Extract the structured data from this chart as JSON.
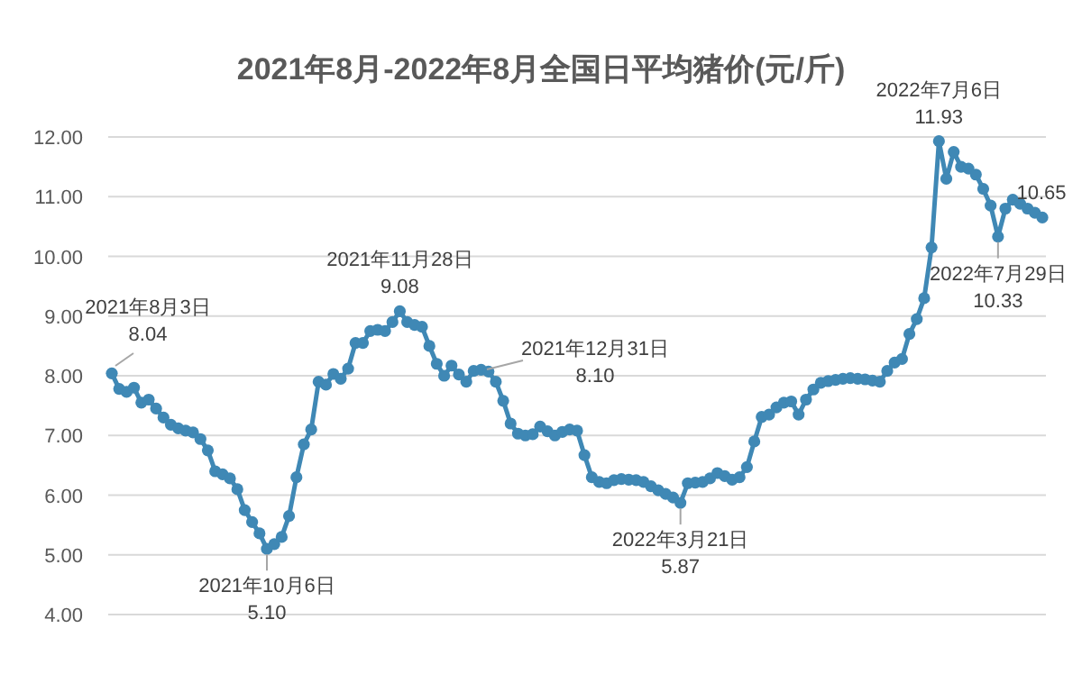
{
  "chart_data": {
    "type": "line",
    "title": "2021年8月-2022年8月全国日平均猪价(元/斤)",
    "categories": [
      null,
      null,
      null,
      null,
      null,
      null,
      null,
      null,
      null,
      null,
      null,
      null,
      null,
      null,
      null,
      null,
      null,
      null,
      null,
      null,
      null,
      null,
      null,
      null,
      null,
      null,
      null,
      null,
      null,
      null,
      null,
      null,
      null,
      null,
      null,
      null,
      null,
      null,
      null,
      null,
      null,
      null,
      null,
      null,
      null,
      null,
      null,
      null,
      null,
      null,
      null,
      null,
      null,
      null,
      null,
      null,
      null,
      null,
      null,
      null,
      null,
      null,
      null,
      null,
      null,
      null,
      null,
      null,
      null,
      null,
      null,
      null,
      null,
      null,
      null,
      null,
      null,
      null,
      null,
      null,
      null,
      null,
      null,
      null,
      null,
      null,
      null,
      null,
      null,
      null,
      null,
      null,
      null,
      null,
      null,
      null,
      null,
      null,
      null,
      null,
      null,
      null,
      null,
      null,
      null,
      null,
      null,
      null,
      null,
      null,
      null,
      null,
      null,
      null,
      null,
      null,
      null,
      null,
      null,
      null,
      null,
      null,
      null,
      null,
      null,
      null,
      null
    ],
    "series": [
      {
        "color": "#3f88b5",
        "values": [
          8.04,
          7.78,
          7.73,
          7.8,
          7.55,
          7.6,
          7.45,
          7.3,
          7.18,
          7.12,
          7.08,
          7.05,
          6.94,
          6.75,
          6.4,
          6.35,
          6.28,
          6.1,
          5.75,
          5.55,
          5.36,
          5.1,
          5.18,
          5.3,
          5.65,
          6.3,
          6.85,
          7.1,
          7.9,
          7.85,
          8.03,
          7.95,
          8.12,
          8.55,
          8.55,
          8.75,
          8.77,
          8.75,
          8.9,
          9.08,
          8.9,
          8.85,
          8.82,
          8.5,
          8.2,
          8.0,
          8.17,
          8.02,
          7.9,
          8.08,
          8.1,
          8.07,
          7.9,
          7.58,
          7.2,
          7.03,
          7.0,
          7.02,
          7.15,
          7.07,
          7.0,
          7.06,
          7.1,
          7.08,
          6.67,
          6.3,
          6.22,
          6.2,
          6.25,
          6.27,
          6.26,
          6.25,
          6.22,
          6.15,
          6.08,
          6.02,
          5.96,
          5.87,
          6.2,
          6.21,
          6.22,
          6.28,
          6.37,
          6.32,
          6.26,
          6.3,
          6.47,
          6.9,
          7.31,
          7.35,
          7.47,
          7.55,
          7.57,
          7.35,
          7.6,
          7.77,
          7.88,
          7.91,
          7.93,
          7.95,
          7.96,
          7.95,
          7.94,
          7.92,
          7.9,
          8.08,
          8.22,
          8.28,
          8.7,
          8.95,
          9.3,
          10.15,
          11.93,
          11.3,
          11.75,
          11.5,
          11.47,
          11.37,
          11.13,
          10.85,
          10.33,
          10.8,
          10.95,
          10.88,
          10.8,
          10.73,
          10.65
        ]
      }
    ],
    "ylim": [
      4,
      12
    ],
    "yticks": [
      {
        "value": 4,
        "label": "4.00"
      },
      {
        "value": 5,
        "label": "5.00"
      },
      {
        "value": 6,
        "label": "6.00"
      },
      {
        "value": 7,
        "label": "7.00"
      },
      {
        "value": 8,
        "label": "8.00"
      },
      {
        "value": 9,
        "label": "9.00"
      },
      {
        "value": 10,
        "label": "10.00"
      },
      {
        "value": 11,
        "label": "11.00"
      },
      {
        "value": 12,
        "label": "12.00"
      }
    ],
    "grid": "y",
    "tick_labels": "y",
    "marker": "circle",
    "annotations": [
      "2021年8月3日\n8.04",
      {
        "text": "2021年10月6日\n5.10",
        "y": 5.1
      },
      {
        "text": "2021年11月28日\n9.08",
        "y": 9.08
      },
      "2021年12月31日\n8.10",
      {
        "text": "2022年3月21日\n5.87",
        "y": 5.87
      },
      {
        "text": "2022年7月6日\n11.93",
        "y": 11.93
      },
      {
        "text": "2022年7月29日\n10.33",
        "y": 10.33
      },
      {
        "text": "10.65",
        "y": 10.65
      }
    ]
  }
}
